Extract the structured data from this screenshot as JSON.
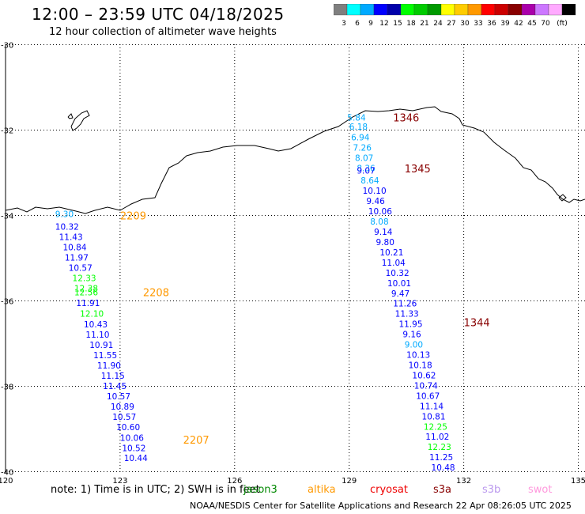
{
  "header": {
    "title": "12:00 – 23:59 UTC 04/18/2025",
    "subtitle": "12 hour collection of altimeter wave heights"
  },
  "colorbar": {
    "colors": [
      "#7f7f7f",
      "#00ffff",
      "#00aaff",
      "#0000ff",
      "#0000aa",
      "#00ff00",
      "#00cc00",
      "#009900",
      "#ffff00",
      "#ffcc00",
      "#ff9900",
      "#ff0000",
      "#cc0000",
      "#880000",
      "#aa00aa",
      "#cc77ff",
      "#ffaaff",
      "#000000"
    ],
    "labels": [
      "3",
      "6",
      "9",
      "12",
      "15",
      "18",
      "21",
      "24",
      "27",
      "30",
      "33",
      "36",
      "39",
      "42",
      "45",
      "70",
      "(ft)"
    ]
  },
  "map": {
    "lon_labels": [
      "120",
      "123",
      "126",
      "129",
      "132",
      "135"
    ],
    "lat_labels": [
      "-30",
      "-32",
      "-34",
      "-36",
      "-38",
      "-40"
    ],
    "lon_ticks": [
      120,
      123,
      126,
      129,
      132,
      135
    ],
    "lat_ticks": [
      -30,
      -32,
      -34,
      -36,
      -38,
      -40
    ]
  },
  "tracks": [
    {
      "id": "2209",
      "label": "2209",
      "label_color": "#ff9900",
      "label_lon": 123.0,
      "label_lat": -34.0,
      "points": [
        {
          "lon": 121.3,
          "lat": -33.96,
          "value": "9.30",
          "color": "#00aaff"
        },
        {
          "lon": 121.3,
          "lat": -34.26,
          "value": "10.32",
          "color": "#0000ff"
        },
        {
          "lon": 121.4,
          "lat": -34.5,
          "value": "11.43",
          "color": "#0000ff"
        },
        {
          "lon": 121.5,
          "lat": -34.74,
          "value": "10.84",
          "color": "#0000ff"
        },
        {
          "lon": 121.55,
          "lat": -34.98,
          "value": "11.97",
          "color": "#0000ff"
        },
        {
          "lon": 121.65,
          "lat": -35.22,
          "value": "10.57",
          "color": "#0000ff"
        },
        {
          "lon": 121.75,
          "lat": -35.46,
          "value": "12.33",
          "color": "#00ff00"
        },
        {
          "lon": 121.8,
          "lat": -35.7,
          "value": "12.38",
          "color": "#00ff00"
        }
      ]
    },
    {
      "id": "2208",
      "label": "2208",
      "label_color": "#ff9900",
      "label_lon": 123.6,
      "label_lat": -35.8,
      "points": [
        {
          "lon": 121.8,
          "lat": -35.8,
          "value": "12.56",
          "color": "#00ff00"
        },
        {
          "lon": 121.85,
          "lat": -36.05,
          "value": "11.91",
          "color": "#0000ff"
        },
        {
          "lon": 121.95,
          "lat": -36.3,
          "value": "12.10",
          "color": "#00ff00"
        },
        {
          "lon": 122.05,
          "lat": -36.55,
          "value": "10.43",
          "color": "#0000ff"
        },
        {
          "lon": 122.1,
          "lat": -36.79,
          "value": "11.10",
          "color": "#0000ff"
        },
        {
          "lon": 122.2,
          "lat": -37.03,
          "value": "10.91",
          "color": "#0000ff"
        },
        {
          "lon": 122.3,
          "lat": -37.27,
          "value": "11.55",
          "color": "#0000ff"
        },
        {
          "lon": 122.4,
          "lat": -37.51,
          "value": "11.90",
          "color": "#0000ff"
        },
        {
          "lon": 122.5,
          "lat": -37.75,
          "value": "11.15",
          "color": "#0000ff"
        },
        {
          "lon": 122.55,
          "lat": -37.99,
          "value": "11.45",
          "color": "#0000ff"
        },
        {
          "lon": 122.65,
          "lat": -38.23,
          "value": "10.57",
          "color": "#0000ff"
        },
        {
          "lon": 122.75,
          "lat": -38.47,
          "value": "10.89",
          "color": "#0000ff"
        },
        {
          "lon": 122.8,
          "lat": -38.71,
          "value": "10.57",
          "color": "#0000ff"
        },
        {
          "lon": 122.9,
          "lat": -38.95,
          "value": "10.60",
          "color": "#0000ff"
        }
      ]
    },
    {
      "id": "2207",
      "label": "2207",
      "label_color": "#ff9900",
      "label_lon": 124.65,
      "label_lat": -39.25,
      "points": [
        {
          "lon": 123.0,
          "lat": -39.2,
          "value": "10.06",
          "color": "#0000ff"
        },
        {
          "lon": 123.05,
          "lat": -39.44,
          "value": "10.52",
          "color": "#0000ff"
        },
        {
          "lon": 123.1,
          "lat": -39.68,
          "value": "10.44",
          "color": "#0000ff"
        }
      ]
    },
    {
      "id": "1346",
      "label": "1346",
      "label_color": "#880000",
      "label_lon": 130.15,
      "label_lat": -31.7,
      "points": [
        {
          "lon": 128.95,
          "lat": -31.7,
          "value": "5.84",
          "color": "#00aaff"
        },
        {
          "lon": 129.0,
          "lat": -31.92,
          "value": "6.18",
          "color": "#00aaff"
        },
        {
          "lon": 129.05,
          "lat": -32.17,
          "value": "6.94",
          "color": "#00aaff"
        },
        {
          "lon": 129.1,
          "lat": -32.41,
          "value": "7.26",
          "color": "#00aaff"
        },
        {
          "lon": 129.15,
          "lat": -32.65,
          "value": "8.07",
          "color": "#00aaff"
        }
      ]
    },
    {
      "id": "1345",
      "label": "1345",
      "label_color": "#880000",
      "label_lon": 130.45,
      "label_lat": -32.9,
      "points": [
        {
          "lon": 129.2,
          "lat": -32.89,
          "value": "8.36",
          "color": "#00aaff"
        },
        {
          "lon": 129.2,
          "lat": -32.94,
          "value": "9.07",
          "color": "#0000ff"
        },
        {
          "lon": 129.3,
          "lat": -33.18,
          "value": "8.64",
          "color": "#00aaff"
        },
        {
          "lon": 129.35,
          "lat": -33.42,
          "value": "10.10",
          "color": "#0000ff"
        },
        {
          "lon": 129.45,
          "lat": -33.66,
          "value": "9.46",
          "color": "#0000ff"
        },
        {
          "lon": 129.5,
          "lat": -33.9,
          "value": "10.06",
          "color": "#0000ff"
        },
        {
          "lon": 129.55,
          "lat": -34.14,
          "value": "8.08",
          "color": "#00aaff"
        },
        {
          "lon": 129.65,
          "lat": -34.38,
          "value": "9.14",
          "color": "#0000ff"
        },
        {
          "lon": 129.7,
          "lat": -34.62,
          "value": "9.80",
          "color": "#0000ff"
        },
        {
          "lon": 129.8,
          "lat": -34.86,
          "value": "10.21",
          "color": "#0000ff"
        },
        {
          "lon": 129.85,
          "lat": -35.1,
          "value": "11.04",
          "color": "#0000ff"
        },
        {
          "lon": 129.95,
          "lat": -35.34,
          "value": "10.32",
          "color": "#0000ff"
        },
        {
          "lon": 130.0,
          "lat": -35.58,
          "value": "10.01",
          "color": "#0000ff"
        },
        {
          "lon": 130.1,
          "lat": -35.82,
          "value": "9.47",
          "color": "#0000ff"
        },
        {
          "lon": 130.15,
          "lat": -36.06,
          "value": "11.26",
          "color": "#0000ff"
        },
        {
          "lon": 130.2,
          "lat": -36.3,
          "value": "11.33",
          "color": "#0000ff"
        }
      ]
    },
    {
      "id": "1344",
      "label": "1344",
      "label_color": "#880000",
      "label_lon": 132.0,
      "label_lat": -36.5,
      "points": [
        {
          "lon": 130.3,
          "lat": -36.54,
          "value": "11.95",
          "color": "#0000ff"
        },
        {
          "lon": 130.4,
          "lat": -36.78,
          "value": "9.16",
          "color": "#0000ff"
        },
        {
          "lon": 130.45,
          "lat": -37.02,
          "value": "9.00",
          "color": "#00aaff"
        },
        {
          "lon": 130.5,
          "lat": -37.26,
          "value": "10.13",
          "color": "#0000ff"
        },
        {
          "lon": 130.55,
          "lat": -37.5,
          "value": "10.18",
          "color": "#0000ff"
        },
        {
          "lon": 130.65,
          "lat": -37.74,
          "value": "10.62",
          "color": "#0000ff"
        },
        {
          "lon": 130.7,
          "lat": -37.98,
          "value": "10.74",
          "color": "#0000ff"
        },
        {
          "lon": 130.75,
          "lat": -38.22,
          "value": "10.67",
          "color": "#0000ff"
        },
        {
          "lon": 130.85,
          "lat": -38.46,
          "value": "11.14",
          "color": "#0000ff"
        },
        {
          "lon": 130.9,
          "lat": -38.7,
          "value": "10.81",
          "color": "#0000ff"
        },
        {
          "lon": 130.95,
          "lat": -38.94,
          "value": "12.25",
          "color": "#00ff00"
        },
        {
          "lon": 131.0,
          "lat": -39.18,
          "value": "11.02",
          "color": "#0000ff"
        },
        {
          "lon": 131.05,
          "lat": -39.42,
          "value": "12.23",
          "color": "#00ff00"
        },
        {
          "lon": 131.1,
          "lat": -39.66,
          "value": "11.25",
          "color": "#0000ff"
        },
        {
          "lon": 131.15,
          "lat": -39.9,
          "value": "10.48",
          "color": "#0000ff"
        }
      ]
    }
  ],
  "footer": {
    "note": "note:  1) Time is in UTC;  2) SWH is in feet",
    "satellites": [
      {
        "name": "jason3",
        "color": "#008800"
      },
      {
        "name": "altika",
        "color": "#ff9900"
      },
      {
        "name": "cryosat",
        "color": "#ee0000"
      },
      {
        "name": "s3a",
        "color": "#880000"
      },
      {
        "name": "s3b",
        "color": "#bb99ee"
      },
      {
        "name": "swot",
        "color": "#ff99dd"
      }
    ],
    "credit": "NOAA/NESDIS Center for Satellite Applications and Research     22 Apr 08:26:05 UTC 2025"
  }
}
